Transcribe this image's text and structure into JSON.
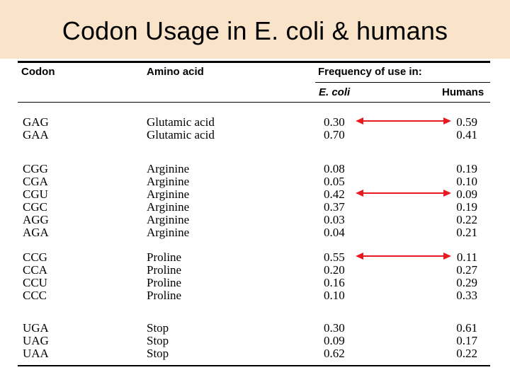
{
  "title": "Codon Usage in E. coli & humans",
  "headers": {
    "codon": "Codon",
    "amino_acid": "Amino acid",
    "frequency": "Frequency of use in:",
    "ecoli": "E. coli",
    "humans": "Humans"
  },
  "groups": [
    {
      "rows": [
        {
          "codon": "GAG",
          "amino_acid": "Glutamic acid",
          "ecoli": "0.30",
          "humans": "0.59"
        },
        {
          "codon": "GAA",
          "amino_acid": "Glutamic acid",
          "ecoli": "0.70",
          "humans": "0.41"
        }
      ]
    },
    {
      "rows": [
        {
          "codon": "CGG",
          "amino_acid": "Arginine",
          "ecoli": "0.08",
          "humans": "0.19"
        },
        {
          "codon": "CGA",
          "amino_acid": "Arginine",
          "ecoli": "0.05",
          "humans": "0.10"
        },
        {
          "codon": "CGU",
          "amino_acid": "Arginine",
          "ecoli": "0.42",
          "humans": "0.09"
        },
        {
          "codon": "CGC",
          "amino_acid": "Arginine",
          "ecoli": "0.37",
          "humans": "0.19"
        },
        {
          "codon": "AGG",
          "amino_acid": "Arginine",
          "ecoli": "0.03",
          "humans": "0.22"
        },
        {
          "codon": "AGA",
          "amino_acid": "Arginine",
          "ecoli": "0.04",
          "humans": "0.21"
        }
      ]
    },
    {
      "rows": [
        {
          "codon": "CCG",
          "amino_acid": "Proline",
          "ecoli": "0.55",
          "humans": "0.11"
        },
        {
          "codon": "CCA",
          "amino_acid": "Proline",
          "ecoli": "0.20",
          "humans": "0.27"
        },
        {
          "codon": "CCU",
          "amino_acid": "Proline",
          "ecoli": "0.16",
          "humans": "0.29"
        },
        {
          "codon": "CCC",
          "amino_acid": "Proline",
          "ecoli": "0.10",
          "humans": "0.33"
        }
      ]
    },
    {
      "rows": [
        {
          "codon": "UGA",
          "amino_acid": "Stop",
          "ecoli": "0.30",
          "humans": "0.61"
        },
        {
          "codon": "UAG",
          "amino_acid": "Stop",
          "ecoli": "0.09",
          "humans": "0.17"
        },
        {
          "codon": "UAA",
          "amino_acid": "Stop",
          "ecoli": "0.62",
          "humans": "0.22"
        }
      ]
    }
  ],
  "highlighted_codons": [
    "GAG",
    "CGU",
    "CCG"
  ],
  "arrow_color": "#e8191f"
}
